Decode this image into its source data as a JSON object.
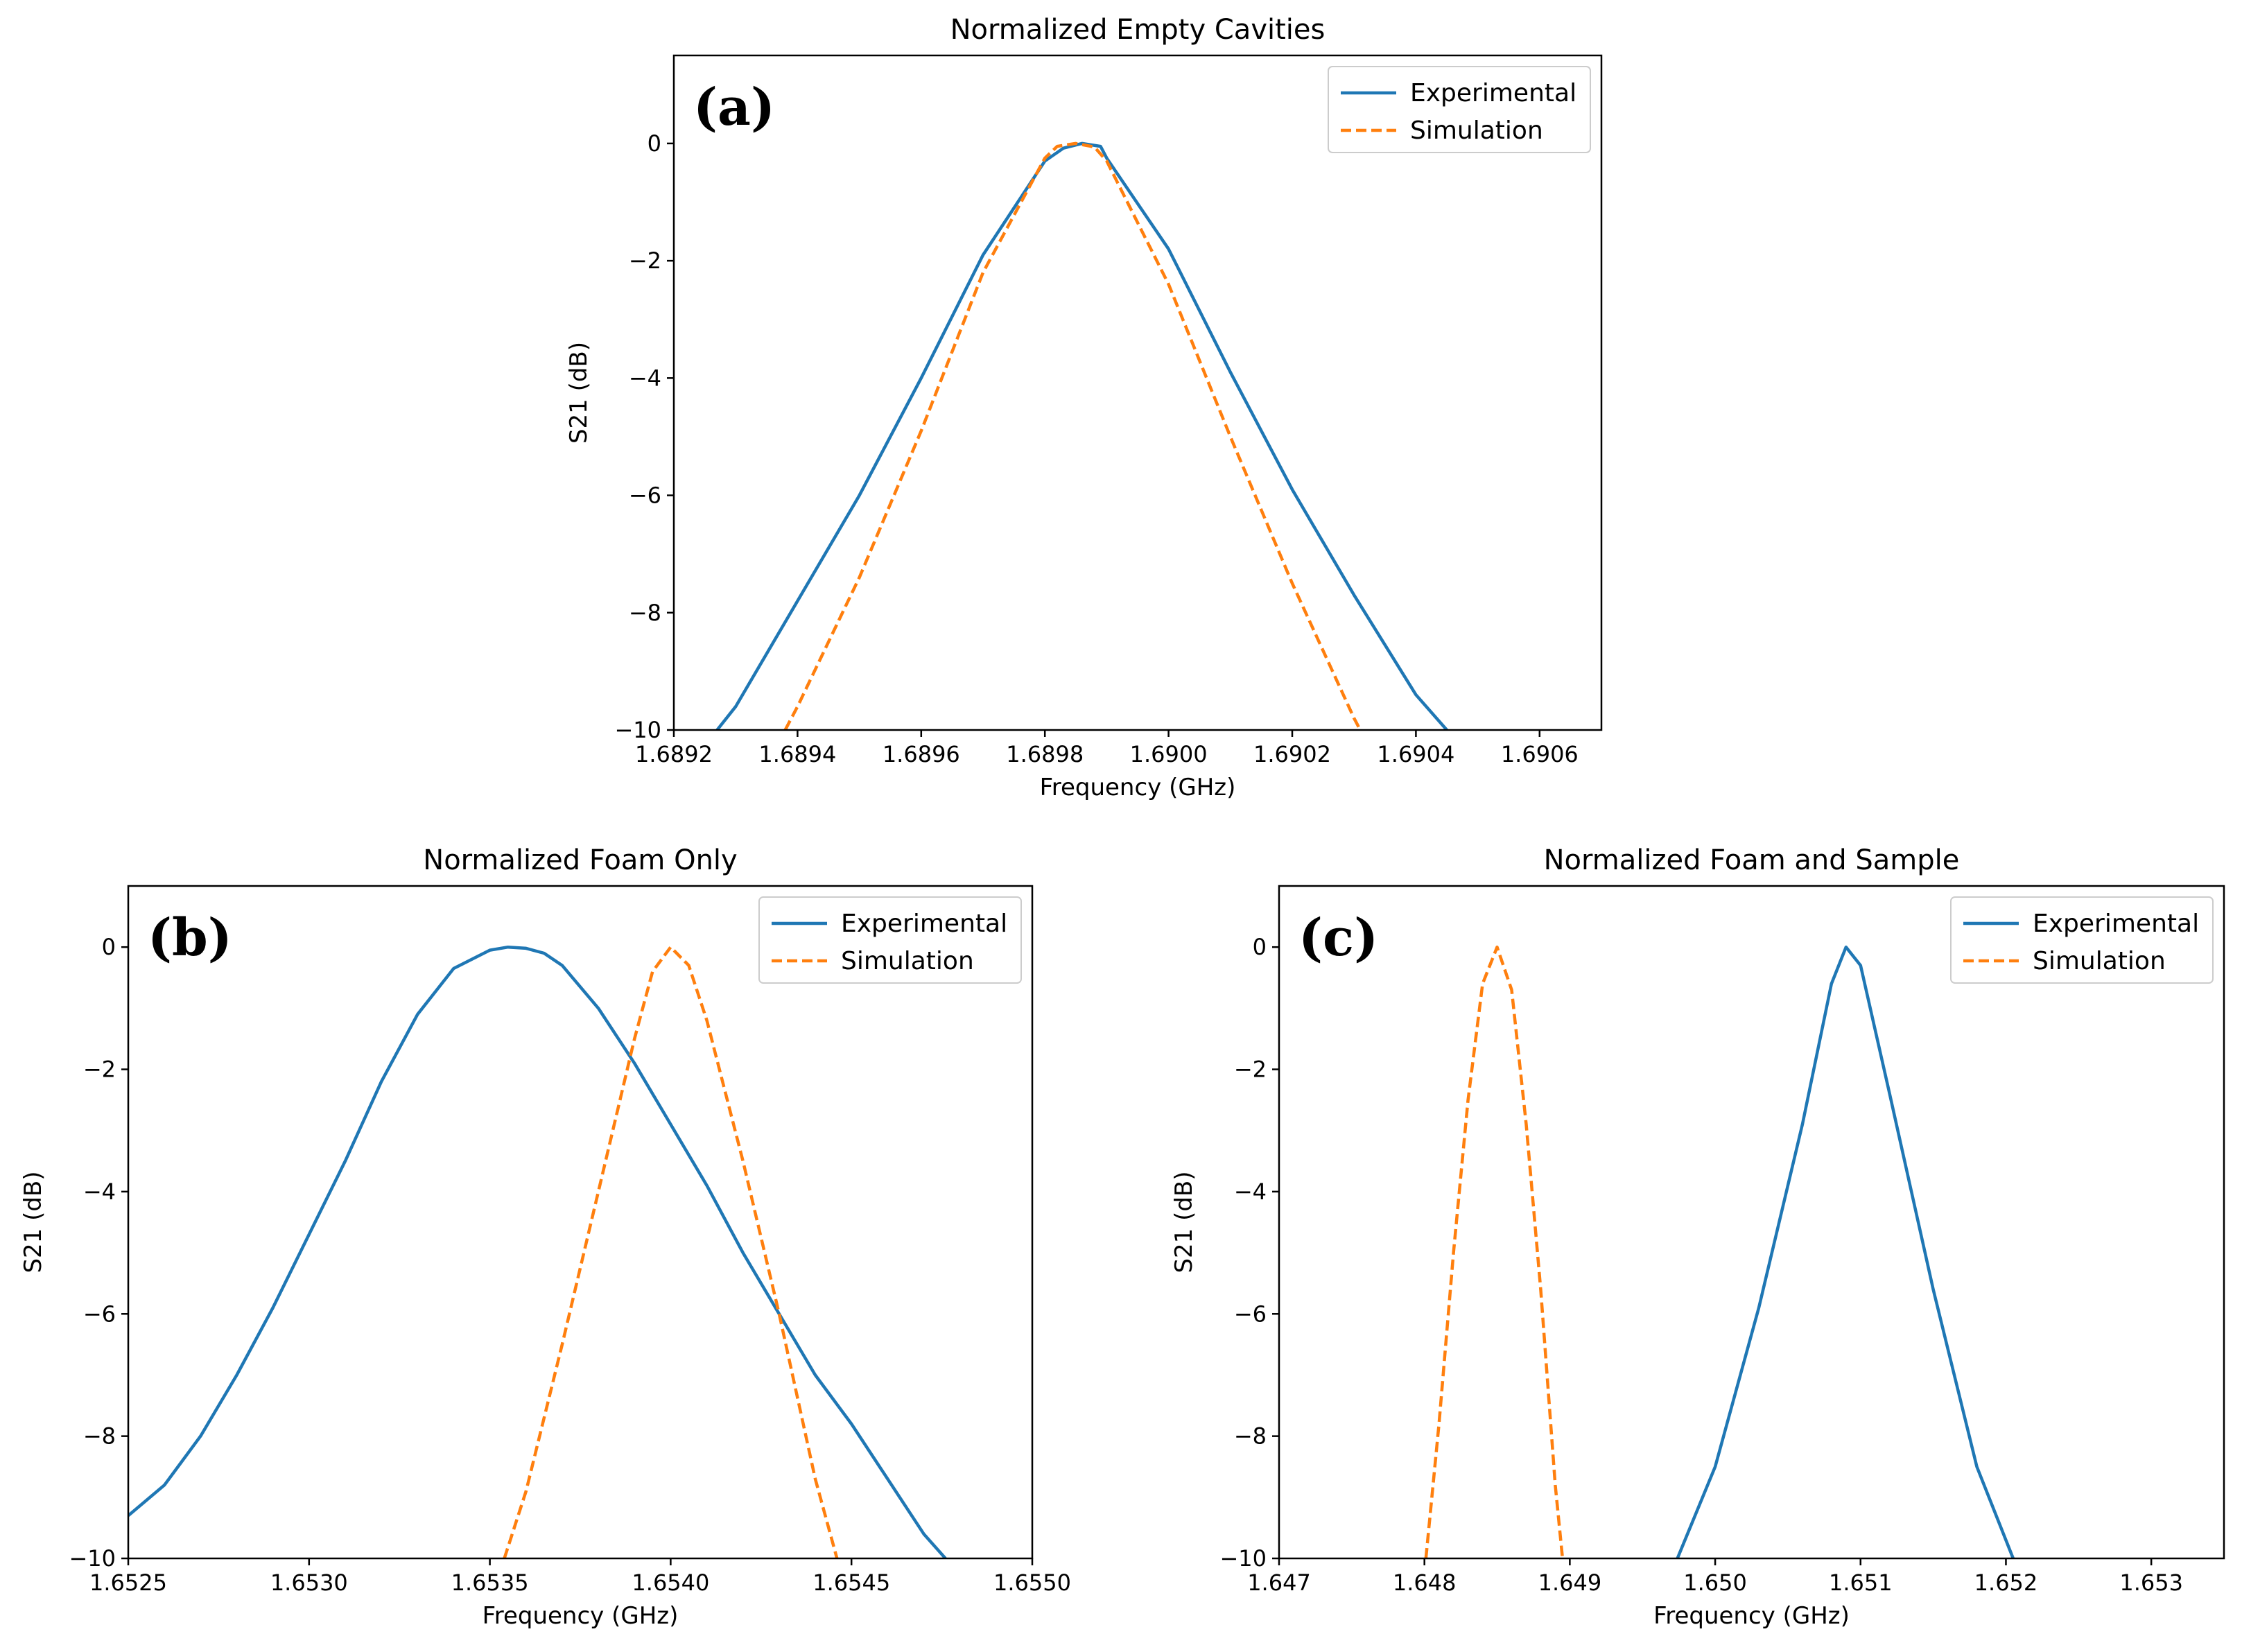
{
  "chart_data": [
    {
      "id": "a",
      "type": "line",
      "panel_label": "(a)",
      "title": "Normalized Empty Cavities",
      "xlabel": "Frequency (GHz)",
      "ylabel": "S21 (dB)",
      "xlim": [
        1.6892,
        1.6907
      ],
      "ylim": [
        -10,
        1.5
      ],
      "xticks": [
        1.6892,
        1.6894,
        1.6896,
        1.6898,
        1.69,
        1.6902,
        1.6904,
        1.6906
      ],
      "xtick_labels": [
        "1.6892",
        "1.6894",
        "1.6896",
        "1.6898",
        "1.6900",
        "1.6902",
        "1.6904",
        "1.6906"
      ],
      "yticks": [
        0,
        -2,
        -4,
        -6,
        -8,
        -10
      ],
      "ytick_labels": [
        "0",
        "−2",
        "−4",
        "−6",
        "−8",
        "−10"
      ],
      "legend_position": "top-right",
      "series": [
        {
          "name": "Experimental",
          "color": "#1f77b4",
          "style": "solid",
          "x": [
            1.68927,
            1.6893,
            1.6894,
            1.6895,
            1.6896,
            1.6897,
            1.6898,
            1.68983,
            1.68986,
            1.68989,
            1.6899,
            1.69,
            1.6901,
            1.6902,
            1.6903,
            1.6904,
            1.69045
          ],
          "y": [
            -10,
            -9.6,
            -7.8,
            -6.0,
            -4.0,
            -1.9,
            -0.3,
            -0.08,
            0,
            -0.05,
            -0.25,
            -1.8,
            -3.9,
            -5.9,
            -7.7,
            -9.4,
            -10
          ]
        },
        {
          "name": "Simulation",
          "color": "#ff7f0e",
          "style": "dashed",
          "x": [
            1.68938,
            1.6894,
            1.6895,
            1.6896,
            1.6897,
            1.6898,
            1.68982,
            1.68985,
            1.68988,
            1.6899,
            1.69,
            1.6901,
            1.6902,
            1.6903,
            1.69031
          ],
          "y": [
            -10,
            -9.6,
            -7.4,
            -4.9,
            -2.2,
            -0.25,
            -0.05,
            0,
            -0.06,
            -0.3,
            -2.4,
            -5.0,
            -7.5,
            -9.8,
            -10
          ]
        }
      ]
    },
    {
      "id": "b",
      "type": "line",
      "panel_label": "(b)",
      "title": "Normalized Foam Only",
      "xlabel": "Frequency (GHz)",
      "ylabel": "S21 (dB)",
      "xlim": [
        1.6525,
        1.655
      ],
      "ylim": [
        -10,
        1.0
      ],
      "xticks": [
        1.6525,
        1.653,
        1.6535,
        1.654,
        1.6545,
        1.655
      ],
      "xtick_labels": [
        "1.6525",
        "1.6530",
        "1.6535",
        "1.6540",
        "1.6545",
        "1.6550"
      ],
      "yticks": [
        0,
        -2,
        -4,
        -6,
        -8,
        -10
      ],
      "ytick_labels": [
        "0",
        "−2",
        "−4",
        "−6",
        "−8",
        "−10"
      ],
      "legend_position": "top-right",
      "series": [
        {
          "name": "Experimental",
          "color": "#1f77b4",
          "style": "solid",
          "x": [
            1.6525,
            1.6526,
            1.6527,
            1.6528,
            1.6529,
            1.653,
            1.6531,
            1.6532,
            1.6533,
            1.6534,
            1.6535,
            1.65355,
            1.6536,
            1.65365,
            1.6537,
            1.6538,
            1.6539,
            1.654,
            1.6541,
            1.6542,
            1.6543,
            1.6544,
            1.6545,
            1.6546,
            1.6547,
            1.65476
          ],
          "y": [
            -9.3,
            -8.8,
            -8.0,
            -7.0,
            -5.9,
            -4.7,
            -3.5,
            -2.2,
            -1.1,
            -0.35,
            -0.05,
            0,
            -0.02,
            -0.1,
            -0.3,
            -1.0,
            -1.9,
            -2.9,
            -3.9,
            -5.0,
            -6.0,
            -7.0,
            -7.8,
            -8.7,
            -9.6,
            -10
          ]
        },
        {
          "name": "Simulation",
          "color": "#ff7f0e",
          "style": "dashed",
          "x": [
            1.65354,
            1.6536,
            1.6537,
            1.6538,
            1.6539,
            1.65395,
            1.654,
            1.65405,
            1.6541,
            1.6542,
            1.6543,
            1.6544,
            1.65446
          ],
          "y": [
            -10,
            -8.9,
            -6.5,
            -4.0,
            -1.5,
            -0.4,
            0,
            -0.3,
            -1.2,
            -3.5,
            -6.0,
            -8.7,
            -10
          ]
        }
      ]
    },
    {
      "id": "c",
      "type": "line",
      "panel_label": "(c)",
      "title": "Normalized Foam and Sample",
      "xlabel": "Frequency (GHz)",
      "ylabel": "S21 (dB)",
      "xlim": [
        1.647,
        1.6535
      ],
      "ylim": [
        -10,
        1.0
      ],
      "xticks": [
        1.647,
        1.648,
        1.649,
        1.65,
        1.651,
        1.652,
        1.653
      ],
      "xtick_labels": [
        "1.647",
        "1.648",
        "1.649",
        "1.650",
        "1.651",
        "1.652",
        "1.653"
      ],
      "yticks": [
        0,
        -2,
        -4,
        -6,
        -8,
        -10
      ],
      "ytick_labels": [
        "0",
        "−2",
        "−4",
        "−6",
        "−8",
        "−10"
      ],
      "legend_position": "top-right",
      "series": [
        {
          "name": "Experimental",
          "color": "#1f77b4",
          "style": "solid",
          "x": [
            1.64974,
            1.65,
            1.6503,
            1.6506,
            1.6508,
            1.6509,
            1.651,
            1.6512,
            1.6515,
            1.6518,
            1.65205
          ],
          "y": [
            -10,
            -8.5,
            -5.9,
            -2.9,
            -0.6,
            0,
            -0.3,
            -2.4,
            -5.6,
            -8.5,
            -10
          ]
        },
        {
          "name": "Simulation",
          "color": "#ff7f0e",
          "style": "dashed",
          "x": [
            1.64801,
            1.6481,
            1.6482,
            1.6483,
            1.6484,
            1.6485,
            1.6486,
            1.6487,
            1.6488,
            1.6489,
            1.64895
          ],
          "y": [
            -10,
            -7.8,
            -5.0,
            -2.5,
            -0.6,
            0,
            -0.7,
            -2.9,
            -5.6,
            -8.8,
            -10
          ]
        }
      ]
    }
  ]
}
